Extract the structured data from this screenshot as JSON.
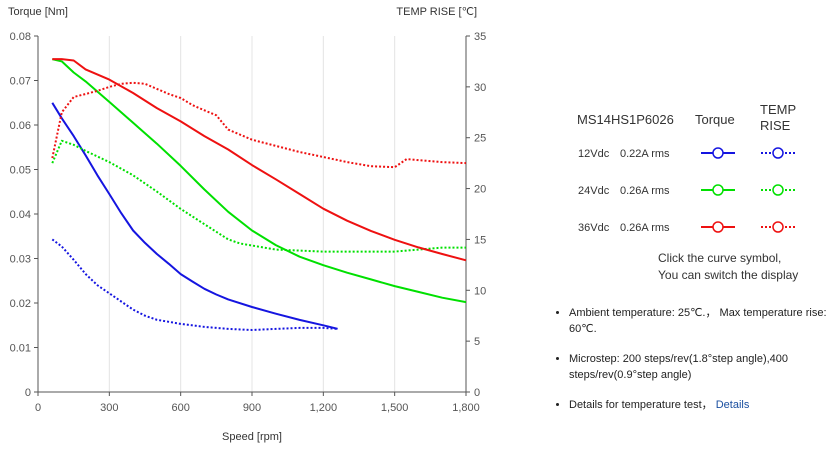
{
  "chart_data": {
    "type": "line",
    "title": "",
    "xlabel": "Speed [rpm]",
    "ylabel_left": "Torque  [Nm]",
    "ylabel_right": "TEMP RISE [℃]",
    "xlim": [
      0,
      1800
    ],
    "ylim_left": [
      0,
      0.08
    ],
    "ylim_right": [
      0,
      35
    ],
    "x_ticks": [
      0,
      300,
      600,
      900,
      1200,
      1500,
      1800
    ],
    "x_tick_labels": [
      "0",
      "300",
      "600",
      "900",
      "1,200",
      "1,500",
      "1,800"
    ],
    "y_left_ticks": [
      0,
      0.01,
      0.02,
      0.03,
      0.04,
      0.05,
      0.06,
      0.07,
      0.08
    ],
    "y_left_tick_labels": [
      "0",
      "0.01",
      "0.02",
      "0.03",
      "0.04",
      "0.05",
      "0.06",
      "0.07",
      "0.08"
    ],
    "y_right_ticks": [
      0,
      5,
      10,
      15,
      20,
      25,
      30,
      35
    ],
    "y_right_tick_labels": [
      "0",
      "5",
      "10",
      "15",
      "20",
      "25",
      "30",
      "35"
    ],
    "grid": "vertical",
    "legend_position": "right",
    "series": [
      {
        "name": "12Vdc 0.22A rms Torque",
        "axis": "left",
        "style": "solid",
        "color": "#1515e0",
        "x": [
          60,
          100,
          150,
          200,
          250,
          300,
          350,
          400,
          450,
          500,
          550,
          600,
          650,
          700,
          750,
          800,
          900,
          1000,
          1100,
          1200,
          1260
        ],
        "y": [
          0.065,
          0.0615,
          0.0575,
          0.0532,
          0.0487,
          0.0445,
          0.0402,
          0.0363,
          0.0335,
          0.031,
          0.0288,
          0.0265,
          0.0248,
          0.0232,
          0.0219,
          0.0208,
          0.0191,
          0.0176,
          0.0162,
          0.015,
          0.0142
        ]
      },
      {
        "name": "12Vdc 0.22A rms TEMP RISE",
        "axis": "right",
        "style": "dotted",
        "color": "#1515e0",
        "x": [
          60,
          100,
          150,
          200,
          250,
          300,
          350,
          400,
          450,
          500,
          550,
          600,
          700,
          800,
          900,
          1000,
          1100,
          1200,
          1260
        ],
        "y": [
          15,
          14.3,
          13.0,
          11.6,
          10.5,
          9.7,
          8.9,
          8.1,
          7.5,
          7.1,
          6.9,
          6.7,
          6.4,
          6.2,
          6.1,
          6.2,
          6.3,
          6.3,
          6.2
        ]
      },
      {
        "name": "24Vdc 0.26A rms Torque",
        "axis": "left",
        "style": "solid",
        "color": "#00e000",
        "x": [
          60,
          100,
          150,
          200,
          300,
          400,
          500,
          600,
          700,
          800,
          900,
          1000,
          1100,
          1200,
          1300,
          1400,
          1500,
          1600,
          1700,
          1800
        ],
        "y": [
          0.0748,
          0.0743,
          0.0718,
          0.0698,
          0.0652,
          0.0605,
          0.0558,
          0.0508,
          0.0455,
          0.0405,
          0.0363,
          0.033,
          0.0304,
          0.0285,
          0.0268,
          0.0253,
          0.0238,
          0.0225,
          0.0212,
          0.0202
        ]
      },
      {
        "name": "24Vdc 0.26A rms TEMP RISE",
        "axis": "right",
        "style": "dotted",
        "color": "#00e000",
        "x": [
          60,
          100,
          150,
          200,
          300,
          400,
          500,
          600,
          700,
          800,
          850,
          900,
          1000,
          1100,
          1200,
          1300,
          1400,
          1500,
          1600,
          1700,
          1800
        ],
        "y": [
          22.5,
          24.7,
          24.3,
          23.7,
          22.6,
          21.3,
          19.7,
          18.0,
          16.5,
          15.0,
          14.6,
          14.4,
          14.0,
          13.9,
          13.8,
          13.8,
          13.8,
          13.8,
          14.0,
          14.2,
          14.2
        ]
      },
      {
        "name": "36Vdc 0.26A rms Torque",
        "axis": "left",
        "style": "solid",
        "color": "#ee1111",
        "x": [
          60,
          100,
          150,
          200,
          300,
          400,
          500,
          600,
          700,
          800,
          900,
          1000,
          1100,
          1200,
          1300,
          1400,
          1500,
          1600,
          1700,
          1800
        ],
        "y": [
          0.0748,
          0.0748,
          0.0745,
          0.0725,
          0.0702,
          0.0672,
          0.0638,
          0.0608,
          0.0575,
          0.0545,
          0.051,
          0.0478,
          0.0445,
          0.0412,
          0.0385,
          0.0362,
          0.0342,
          0.0325,
          0.031,
          0.0296
        ]
      },
      {
        "name": "36Vdc 0.26A rms TEMP RISE",
        "axis": "right",
        "style": "dotted",
        "color": "#ee1111",
        "x": [
          60,
          100,
          150,
          200,
          250,
          300,
          350,
          400,
          450,
          500,
          550,
          600,
          650,
          700,
          750,
          800,
          900,
          1000,
          1100,
          1200,
          1300,
          1400,
          1500,
          1550,
          1600,
          1700,
          1800
        ],
        "y": [
          23,
          27.5,
          29.0,
          29.3,
          29.6,
          30.0,
          30.3,
          30.4,
          30.3,
          29.8,
          29.3,
          28.9,
          28.2,
          27.7,
          27.2,
          25.8,
          24.8,
          24.2,
          23.6,
          23.1,
          22.6,
          22.2,
          22.1,
          22.9,
          22.8,
          22.6,
          22.5
        ]
      }
    ]
  },
  "legend": {
    "model": "MS14HS1P6026",
    "torque_header": "Torque",
    "temp_header_line1": "TEMP",
    "temp_header_line2": "RISE",
    "rows": [
      {
        "voltage": "12Vdc",
        "current": "0.22A rms",
        "color": "#1515e0"
      },
      {
        "voltage": "24Vdc",
        "current": "0.26A rms",
        "color": "#00e000"
      },
      {
        "voltage": "36Vdc",
        "current": "0.26A rms",
        "color": "#ee1111"
      }
    ],
    "hint_line1": "Click the curve symbol,",
    "hint_line2": "You can switch the display"
  },
  "notes": {
    "ambient": "Ambient temperature: 25℃.， Max temperature rise: 60℃.",
    "microstep": "Microstep: 200 steps/rev(1.8°step angle),400 steps/rev(0.9°step angle)",
    "temp_test": "Details for temperature test，",
    "details_link": "Details"
  }
}
